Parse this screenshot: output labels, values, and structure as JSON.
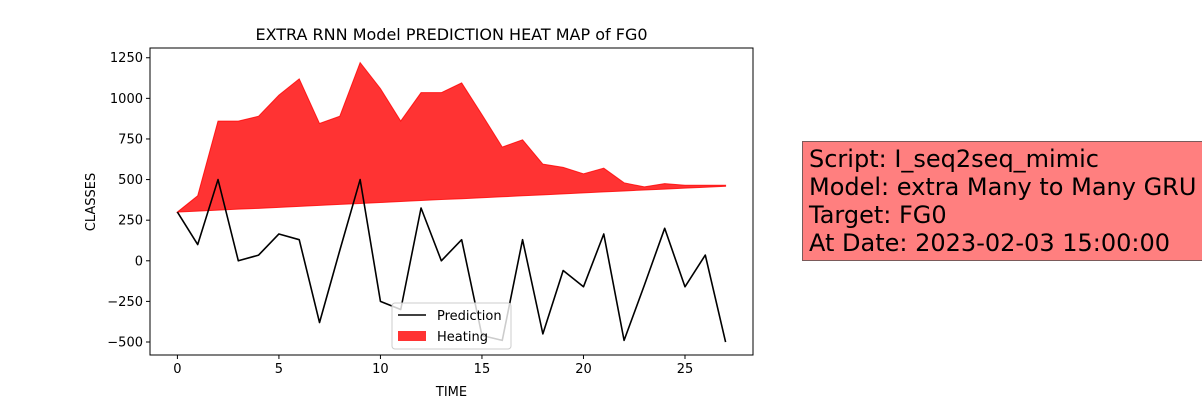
{
  "chart_data": {
    "type": "area",
    "title": "EXTRA RNN Model PREDICTION HEAT MAP of FG0",
    "xlabel": "TIME",
    "ylabel": "CLASSES",
    "xlim": [
      -1.35,
      28.35
    ],
    "ylim": [
      -580,
      1310
    ],
    "xticks": [
      0,
      5,
      10,
      15,
      20,
      25
    ],
    "yticks": [
      -500,
      -250,
      0,
      250,
      500,
      750,
      1000,
      1250
    ],
    "grid": false,
    "legend": "lower-center",
    "colors": {
      "prediction": "#000000",
      "heating": "#ff0000"
    },
    "x": [
      0,
      1,
      2,
      3,
      4,
      5,
      6,
      7,
      8,
      9,
      10,
      11,
      12,
      13,
      14,
      15,
      16,
      17,
      18,
      19,
      20,
      21,
      22,
      23,
      24,
      25,
      26,
      27
    ],
    "series": [
      {
        "name": "Prediction",
        "kind": "line",
        "values": [
          300,
          100,
          500,
          0,
          35,
          165,
          130,
          -380,
          65,
          500,
          -250,
          -300,
          325,
          0,
          130,
          -460,
          -490,
          130,
          -450,
          -60,
          -160,
          165,
          -490,
          -150,
          200,
          -160,
          35,
          -500
        ]
      },
      {
        "name": "Heating",
        "kind": "fill_between",
        "lower": [
          300,
          306,
          312,
          318,
          323,
          329,
          335,
          341,
          347,
          353,
          359,
          365,
          371,
          377,
          382,
          388,
          394,
          400,
          406,
          412,
          418,
          424,
          430,
          436,
          441,
          447,
          453,
          459
        ],
        "upper": [
          300,
          400,
          860,
          860,
          890,
          1020,
          1120,
          845,
          890,
          1220,
          1060,
          860,
          1035,
          1035,
          1095,
          900,
          700,
          745,
          595,
          575,
          535,
          570,
          480,
          455,
          475,
          465,
          465,
          465
        ]
      }
    ]
  },
  "infobox": {
    "line1": "Script: I_seq2seq_mimic",
    "line2": "Model: extra Many to Many GRU",
    "line3": "Target: FG0",
    "line4": "At Date: 2023-02-03 15:00:00"
  }
}
